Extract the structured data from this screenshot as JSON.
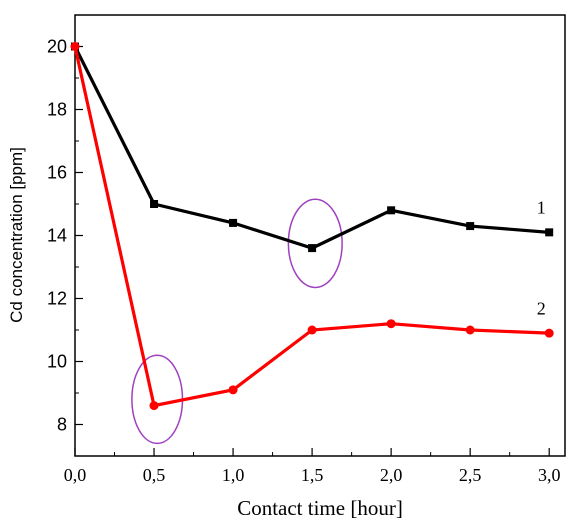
{
  "chart_data": {
    "type": "line",
    "xlabel": "Contact time [hour]",
    "ylabel": "Cd concentration [ppm]",
    "xlim": [
      0,
      3.1
    ],
    "ylim": [
      7,
      21
    ],
    "x_ticks": [
      {
        "value": 0.0,
        "label": "0,0"
      },
      {
        "value": 0.5,
        "label": "0,5"
      },
      {
        "value": 1.0,
        "label": "1,0"
      },
      {
        "value": 1.5,
        "label": "1,5"
      },
      {
        "value": 2.0,
        "label": "2,0"
      },
      {
        "value": 2.5,
        "label": "2,5"
      },
      {
        "value": 3.0,
        "label": "3,0"
      }
    ],
    "y_ticks": [
      {
        "value": 8,
        "label": "8"
      },
      {
        "value": 10,
        "label": "10"
      },
      {
        "value": 12,
        "label": "12"
      },
      {
        "value": 14,
        "label": "14"
      },
      {
        "value": 16,
        "label": "16"
      },
      {
        "value": 18,
        "label": "18"
      },
      {
        "value": 20,
        "label": "20"
      }
    ],
    "grid": false,
    "series": [
      {
        "name": "1",
        "color": "#000000",
        "marker": "square",
        "x": [
          0,
          0.5,
          1.0,
          1.5,
          2.0,
          2.5,
          3.0
        ],
        "y": [
          20,
          15.0,
          14.4,
          13.6,
          14.8,
          14.3,
          14.1
        ],
        "label_anchor": {
          "x": 2.95,
          "y": 14.7
        }
      },
      {
        "name": "2",
        "color": "#ff0000",
        "marker": "circle",
        "x": [
          0,
          0.5,
          1.0,
          1.5,
          2.0,
          2.5,
          3.0
        ],
        "y": [
          20,
          8.6,
          9.1,
          11.0,
          11.2,
          11.0,
          10.9
        ],
        "label_anchor": {
          "x": 2.95,
          "y": 11.5
        }
      }
    ],
    "annotations": [
      {
        "shape": "ellipse",
        "color": "#a040c0",
        "x": 0.52,
        "y": 8.8,
        "rx": 0.16,
        "ry": 1.4
      },
      {
        "shape": "ellipse",
        "color": "#a040c0",
        "x": 1.52,
        "y": 13.75,
        "rx": 0.17,
        "ry": 1.4
      }
    ]
  }
}
